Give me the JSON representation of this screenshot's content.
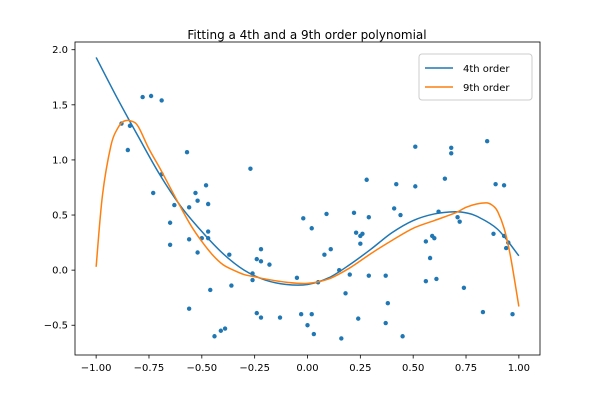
{
  "chart_data": {
    "type": "scatter",
    "title": "Fitting a 4th and a 9th order polynomial",
    "xlabel": "",
    "ylabel": "",
    "xlim": [
      -1.1,
      1.1
    ],
    "ylim": [
      -0.77,
      2.07
    ],
    "x_ticks": [
      -1.0,
      -0.75,
      -0.5,
      -0.25,
      0.0,
      0.25,
      0.5,
      0.75,
      1.0
    ],
    "x_tick_labels": [
      "−1.00",
      "−0.75",
      "−0.50",
      "−0.25",
      "0.00",
      "0.25",
      "0.50",
      "0.75",
      "1.00"
    ],
    "y_ticks": [
      -0.5,
      0.0,
      0.5,
      1.0,
      1.5,
      2.0
    ],
    "y_tick_labels": [
      "−0.5",
      "0.0",
      "0.5",
      "1.0",
      "1.5",
      "2.0"
    ],
    "grid": false,
    "legend_position": "top-right",
    "points_color": "#1f77b4",
    "points": [
      [
        -0.88,
        1.33
      ],
      [
        -0.85,
        1.09
      ],
      [
        -0.84,
        1.31
      ],
      [
        -0.78,
        1.57
      ],
      [
        -0.74,
        1.58
      ],
      [
        -0.69,
        1.54
      ],
      [
        -0.73,
        0.7
      ],
      [
        -0.69,
        0.87
      ],
      [
        -0.63,
        0.59
      ],
      [
        -0.65,
        0.43
      ],
      [
        -0.65,
        0.23
      ],
      [
        -0.57,
        1.07
      ],
      [
        -0.56,
        0.57
      ],
      [
        -0.53,
        0.7
      ],
      [
        -0.48,
        0.77
      ],
      [
        -0.52,
        0.63
      ],
      [
        -0.56,
        0.28
      ],
      [
        -0.5,
        0.29
      ],
      [
        -0.47,
        0.35
      ],
      [
        -0.47,
        0.29
      ],
      [
        -0.47,
        0.6
      ],
      [
        -0.52,
        0.16
      ],
      [
        -0.56,
        -0.35
      ],
      [
        -0.46,
        -0.18
      ],
      [
        -0.44,
        -0.6
      ],
      [
        -0.41,
        -0.55
      ],
      [
        -0.39,
        -0.53
      ],
      [
        -0.37,
        0.14
      ],
      [
        -0.36,
        -0.14
      ],
      [
        -0.27,
        0.92
      ],
      [
        -0.26,
        -0.03
      ],
      [
        -0.26,
        -0.09
      ],
      [
        -0.24,
        -0.39
      ],
      [
        -0.22,
        -0.43
      ],
      [
        -0.22,
        0.19
      ],
      [
        -0.22,
        0.08
      ],
      [
        -0.24,
        0.1
      ],
      [
        -0.18,
        0.05
      ],
      [
        -0.13,
        -0.43
      ],
      [
        -0.05,
        -0.07
      ],
      [
        -0.03,
        -0.4
      ],
      [
        0.02,
        -0.4
      ],
      [
        -0.02,
        0.47
      ],
      [
        0.02,
        0.38
      ],
      [
        0.0,
        -0.5
      ],
      [
        0.03,
        -0.58
      ],
      [
        0.05,
        -0.11
      ],
      [
        0.08,
        0.14
      ],
      [
        0.09,
        0.51
      ],
      [
        0.11,
        0.19
      ],
      [
        0.15,
        0.0
      ],
      [
        0.16,
        -0.62
      ],
      [
        0.18,
        -0.21
      ],
      [
        0.2,
        -0.04
      ],
      [
        0.22,
        0.52
      ],
      [
        0.23,
        0.34
      ],
      [
        0.24,
        -0.44
      ],
      [
        0.25,
        0.31
      ],
      [
        0.25,
        0.24
      ],
      [
        0.26,
        0.33
      ],
      [
        0.28,
        0.82
      ],
      [
        0.29,
        0.48
      ],
      [
        0.29,
        -0.05
      ],
      [
        0.37,
        -0.05
      ],
      [
        0.37,
        -0.48
      ],
      [
        0.38,
        -0.3
      ],
      [
        0.41,
        0.56
      ],
      [
        0.42,
        0.78
      ],
      [
        0.44,
        0.5
      ],
      [
        0.45,
        -0.6
      ],
      [
        0.51,
        1.12
      ],
      [
        0.51,
        0.76
      ],
      [
        0.56,
        0.26
      ],
      [
        0.56,
        -0.1
      ],
      [
        0.58,
        0.11
      ],
      [
        0.59,
        0.31
      ],
      [
        0.6,
        0.29
      ],
      [
        0.62,
        0.53
      ],
      [
        0.61,
        -0.08
      ],
      [
        0.65,
        0.83
      ],
      [
        0.68,
        1.11
      ],
      [
        0.68,
        1.06
      ],
      [
        0.71,
        0.48
      ],
      [
        0.72,
        0.44
      ],
      [
        0.74,
        -0.16
      ],
      [
        0.85,
        1.17
      ],
      [
        0.83,
        -0.38
      ],
      [
        0.89,
        0.78
      ],
      [
        0.88,
        0.33
      ],
      [
        0.93,
        0.77
      ],
      [
        0.93,
        0.31
      ],
      [
        0.95,
        0.25
      ],
      [
        0.94,
        0.2
      ],
      [
        0.97,
        -0.4
      ]
    ],
    "series": [
      {
        "name": "4th order",
        "color": "#1f77b4",
        "x": [
          -1.0,
          -0.9,
          -0.8,
          -0.7,
          -0.6,
          -0.5,
          -0.4,
          -0.3,
          -0.2,
          -0.1,
          0.0,
          0.1,
          0.2,
          0.3,
          0.4,
          0.5,
          0.6,
          0.7,
          0.75,
          0.8,
          0.9,
          1.0
        ],
        "y": [
          1.93,
          1.56,
          1.21,
          0.87,
          0.58,
          0.35,
          0.15,
          0.0,
          -0.09,
          -0.13,
          -0.13,
          -0.07,
          0.05,
          0.19,
          0.34,
          0.45,
          0.51,
          0.53,
          0.52,
          0.49,
          0.37,
          0.13
        ]
      },
      {
        "name": "9th order",
        "color": "#ff7f0e",
        "x": [
          -1.0,
          -0.97,
          -0.93,
          -0.9,
          -0.87,
          -0.83,
          -0.8,
          -0.75,
          -0.7,
          -0.65,
          -0.6,
          -0.55,
          -0.5,
          -0.45,
          -0.4,
          -0.35,
          -0.3,
          -0.25,
          -0.2,
          -0.1,
          0.0,
          0.1,
          0.2,
          0.3,
          0.4,
          0.5,
          0.6,
          0.7,
          0.75,
          0.8,
          0.85,
          0.88,
          0.9,
          0.93,
          0.96,
          1.0
        ],
        "y": [
          0.03,
          0.68,
          1.13,
          1.28,
          1.35,
          1.35,
          1.3,
          1.1,
          0.93,
          0.75,
          0.57,
          0.4,
          0.26,
          0.14,
          0.05,
          0.0,
          -0.04,
          -0.06,
          -0.08,
          -0.11,
          -0.12,
          -0.08,
          0.02,
          0.15,
          0.27,
          0.38,
          0.45,
          0.52,
          0.57,
          0.6,
          0.61,
          0.58,
          0.53,
          0.38,
          0.13,
          -0.33
        ]
      }
    ]
  }
}
